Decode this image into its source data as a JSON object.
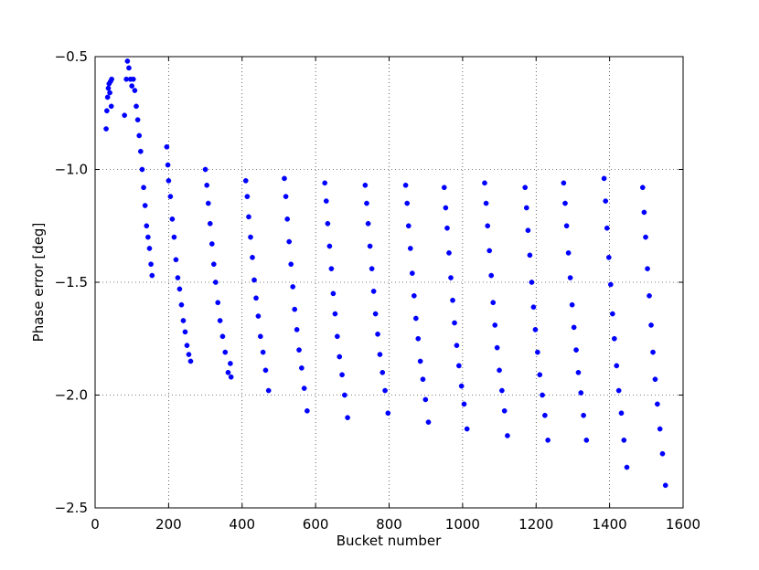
{
  "chart_data": {
    "type": "scatter",
    "xlabel": "Bucket number",
    "ylabel": "Phase error [deg]",
    "xlim": [
      0,
      1600
    ],
    "xticks": [
      0,
      200,
      400,
      600,
      800,
      1000,
      1200,
      1400,
      1600
    ],
    "ylim": [
      -2.5,
      -0.5
    ],
    "yticks": [
      {
        "value": -2.5,
        "label": "−2.5"
      },
      {
        "value": -2.0,
        "label": "−2.0"
      },
      {
        "value": -1.5,
        "label": "−1.5"
      },
      {
        "value": -1.0,
        "label": "−1.0"
      },
      {
        "value": -0.5,
        "label": "−0.5"
      }
    ],
    "grid": true,
    "color": "#0000ff",
    "x": [
      30,
      32,
      34,
      36,
      38,
      40,
      42,
      44,
      45,
      80,
      85,
      88,
      92,
      96,
      100,
      104,
      108,
      112,
      116,
      120,
      124,
      128,
      132,
      136,
      140,
      144,
      148,
      152,
      155,
      195,
      198,
      200,
      205,
      210,
      215,
      220,
      225,
      230,
      235,
      240,
      245,
      250,
      255,
      260,
      300,
      304,
      308,
      313,
      318,
      323,
      328,
      334,
      340,
      347,
      354,
      362,
      368,
      370,
      410,
      414,
      418,
      423,
      428,
      433,
      438,
      444,
      450,
      457,
      464,
      472,
      515,
      519,
      523,
      528,
      533,
      538,
      543,
      549,
      555,
      562,
      569,
      577,
      625,
      629,
      633,
      638,
      643,
      648,
      653,
      659,
      665,
      672,
      679,
      687,
      735,
      739,
      743,
      748,
      753,
      758,
      763,
      769,
      775,
      782,
      789,
      797,
      845,
      849,
      853,
      858,
      863,
      868,
      873,
      879,
      885,
      892,
      899,
      907,
      950,
      954,
      958,
      963,
      968,
      973,
      978,
      984,
      990,
      997,
      1004,
      1012,
      1060,
      1064,
      1068,
      1073,
      1078,
      1083,
      1088,
      1094,
      1100,
      1107,
      1114,
      1122,
      1170,
      1174,
      1178,
      1183,
      1188,
      1193,
      1198,
      1204,
      1210,
      1217,
      1224,
      1232,
      1275,
      1279,
      1283,
      1288,
      1293,
      1298,
      1303,
      1309,
      1315,
      1322,
      1329,
      1337,
      1385,
      1389,
      1393,
      1398,
      1403,
      1408,
      1413,
      1419,
      1425,
      1432,
      1439,
      1447,
      1490,
      1494,
      1498,
      1503,
      1508,
      1513,
      1518,
      1524,
      1530,
      1537,
      1544,
      1552
    ],
    "values": [
      -0.82,
      -0.74,
      -0.68,
      -0.64,
      -0.62,
      -0.66,
      -0.61,
      -0.72,
      -0.6,
      -0.76,
      -0.6,
      -0.52,
      -0.55,
      -0.6,
      -0.63,
      -0.6,
      -0.65,
      -0.72,
      -0.78,
      -0.85,
      -0.92,
      -1.0,
      -1.08,
      -1.16,
      -1.25,
      -1.3,
      -1.35,
      -1.42,
      -1.47,
      -0.9,
      -0.98,
      -1.05,
      -1.12,
      -1.22,
      -1.3,
      -1.4,
      -1.48,
      -1.53,
      -1.6,
      -1.67,
      -1.72,
      -1.78,
      -1.82,
      -1.85,
      -1.0,
      -1.07,
      -1.15,
      -1.24,
      -1.33,
      -1.42,
      -1.5,
      -1.59,
      -1.67,
      -1.74,
      -1.81,
      -1.9,
      -1.86,
      -1.92,
      -1.05,
      -1.12,
      -1.21,
      -1.3,
      -1.39,
      -1.49,
      -1.57,
      -1.65,
      -1.74,
      -1.81,
      -1.89,
      -1.98,
      -1.04,
      -1.12,
      -1.22,
      -1.32,
      -1.42,
      -1.52,
      -1.62,
      -1.71,
      -1.8,
      -1.88,
      -1.97,
      -2.07,
      -1.06,
      -1.14,
      -1.24,
      -1.34,
      -1.44,
      -1.55,
      -1.64,
      -1.74,
      -1.83,
      -1.91,
      -2.0,
      -2.1,
      -1.07,
      -1.15,
      -1.24,
      -1.34,
      -1.44,
      -1.54,
      -1.64,
      -1.73,
      -1.82,
      -1.9,
      -1.98,
      -2.08,
      -1.07,
      -1.15,
      -1.25,
      -1.35,
      -1.46,
      -1.56,
      -1.66,
      -1.75,
      -1.85,
      -1.93,
      -2.02,
      -2.12,
      -1.08,
      -1.17,
      -1.26,
      -1.37,
      -1.48,
      -1.58,
      -1.68,
      -1.78,
      -1.87,
      -1.96,
      -2.04,
      -2.15,
      -1.06,
      -1.15,
      -1.25,
      -1.36,
      -1.47,
      -1.59,
      -1.69,
      -1.79,
      -1.89,
      -1.98,
      -2.07,
      -2.18,
      -1.08,
      -1.17,
      -1.27,
      -1.38,
      -1.5,
      -1.61,
      -1.71,
      -1.81,
      -1.91,
      -2.0,
      -2.09,
      -2.2,
      -1.06,
      -1.15,
      -1.25,
      -1.37,
      -1.48,
      -1.6,
      -1.7,
      -1.8,
      -1.9,
      -1.99,
      -2.09,
      -2.2,
      -1.04,
      -1.14,
      -1.26,
      -1.39,
      -1.51,
      -1.64,
      -1.75,
      -1.87,
      -1.98,
      -2.08,
      -2.2,
      -2.32,
      -1.08,
      -1.19,
      -1.3,
      -1.44,
      -1.56,
      -1.69,
      -1.81,
      -1.93,
      -2.04,
      -2.15,
      -2.26,
      -2.4
    ]
  }
}
